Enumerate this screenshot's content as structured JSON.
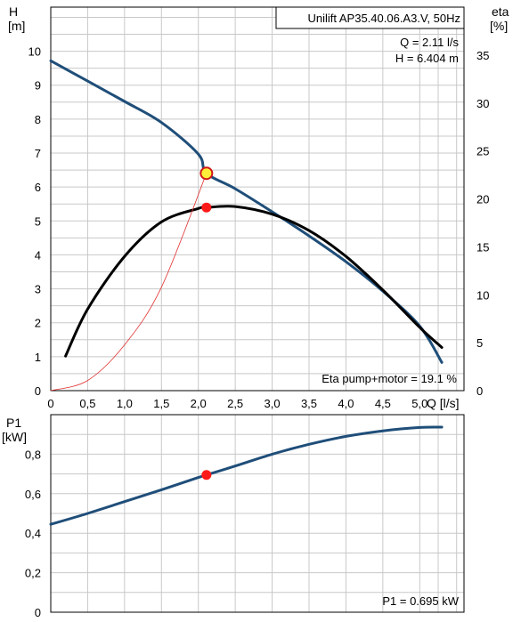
{
  "chart_data": [
    {
      "type": "line",
      "title": "Unilift AP35.40.06.A3.V, 50Hz",
      "ylabel": "H",
      "ylabel_unit": "[m]",
      "y2label": "eta",
      "y2label_unit": "[%]",
      "xlabel": "Q [l/s]",
      "xlim": [
        0,
        5.6
      ],
      "ylim": [
        0,
        11.3
      ],
      "y2lim": [
        0,
        40
      ],
      "x_ticks": [
        "0",
        "0,5",
        "1,0",
        "1,5",
        "2,0",
        "2,5",
        "3,0",
        "3,5",
        "4,0",
        "4,5",
        "5,0"
      ],
      "y_ticks": [
        "0",
        "1",
        "2",
        "3",
        "4",
        "5",
        "6",
        "7",
        "8",
        "9",
        "10"
      ],
      "y2_ticks": [
        "0",
        "5",
        "10",
        "15",
        "20",
        "25",
        "30",
        "35"
      ],
      "grid": true,
      "series": [
        {
          "name": "H",
          "axis": "left",
          "color": "#1f4e79",
          "x": [
            0,
            0.5,
            1.0,
            1.5,
            2.0,
            2.11,
            2.5,
            3.0,
            3.5,
            4.0,
            4.5,
            5.0,
            5.3
          ],
          "y": [
            9.72,
            9.12,
            8.52,
            7.9,
            6.97,
            6.404,
            5.95,
            5.27,
            4.56,
            3.8,
            2.93,
            1.9,
            0.83
          ]
        },
        {
          "name": "Eta pump+motor",
          "axis": "right",
          "color": "#000000",
          "x": [
            0.2,
            0.5,
            1.0,
            1.5,
            2.0,
            2.11,
            2.5,
            3.0,
            3.5,
            4.0,
            4.5,
            5.0,
            5.3
          ],
          "y": [
            3.6,
            8.5,
            14.0,
            17.6,
            19.0,
            19.1,
            19.2,
            18.4,
            16.7,
            14.0,
            10.5,
            6.6,
            4.5
          ]
        },
        {
          "name": "system",
          "axis": "left",
          "color": "#e03030",
          "x": [
            0,
            0.5,
            1.0,
            1.5,
            2.11
          ],
          "y": [
            0,
            0.3,
            1.35,
            3.05,
            6.404
          ]
        }
      ],
      "duty_point": {
        "x": 2.11,
        "y": 6.404,
        "eta": 19.1
      },
      "annotations": {
        "q_label": "Q = 2.11 l/s",
        "h_label": "H = 6.404 m",
        "eta_label": "Eta pump+motor = 19.1 %"
      }
    },
    {
      "type": "line",
      "ylabel": "P1",
      "ylabel_unit": "[kW]",
      "xlim": [
        0,
        5.6
      ],
      "ylim": [
        0,
        1.0
      ],
      "y_ticks": [
        "0",
        "0,2",
        "0,4",
        "0,6",
        "0,8"
      ],
      "grid": true,
      "series": [
        {
          "name": "P1",
          "color": "#1f4e79",
          "x": [
            0,
            0.5,
            1.0,
            1.5,
            2.0,
            2.11,
            2.5,
            3.0,
            3.5,
            4.0,
            4.5,
            5.0,
            5.3
          ],
          "y": [
            0.445,
            0.5,
            0.56,
            0.62,
            0.682,
            0.695,
            0.74,
            0.8,
            0.85,
            0.89,
            0.918,
            0.935,
            0.937
          ]
        }
      ],
      "duty_point": {
        "x": 2.11,
        "y": 0.695
      },
      "annotations": {
        "p1_label": "P1 = 0.695 kW"
      }
    }
  ]
}
